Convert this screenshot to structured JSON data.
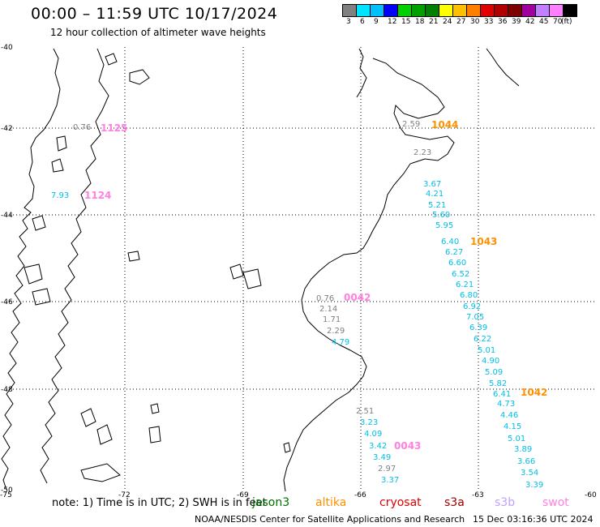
{
  "header": {
    "title": "00:00 – 11:59 UTC 10/17/2024",
    "subtitle": "12 hour collection of altimeter wave heights"
  },
  "colorbar": {
    "colors": [
      "#808080",
      "#00e5ff",
      "#00bfff",
      "#0000ff",
      "#00d000",
      "#00a000",
      "#008000",
      "#ffff00",
      "#ffc000",
      "#ff8000",
      "#e00000",
      "#b00000",
      "#800000",
      "#a000a0",
      "#c080ff",
      "#ff80ff",
      "#000000"
    ],
    "labels": [
      "3",
      "6",
      "9",
      "12",
      "15",
      "18",
      "21",
      "24",
      "27",
      "30",
      "33",
      "36",
      "39",
      "42",
      "45",
      "70",
      "(ft)"
    ]
  },
  "axes": {
    "lat_labels": [
      "-40",
      "-42",
      "-44",
      "-46",
      "-48",
      "-50"
    ],
    "lon_labels": [
      "-75",
      "-72",
      "-69",
      "-66",
      "-63",
      "-60"
    ]
  },
  "points": [
    {
      "v": "0.76",
      "c": "#808080"
    },
    {
      "v": "7.93",
      "c": "#00bfe6"
    },
    {
      "v": "2.59",
      "c": "#808080"
    },
    {
      "v": "2.23",
      "c": "#808080"
    },
    {
      "v": "3.67",
      "c": "#00bfe6"
    },
    {
      "v": "4.21",
      "c": "#00bfe6"
    },
    {
      "v": "5.21",
      "c": "#00bfe6"
    },
    {
      "v": "5.60",
      "c": "#00bfe6"
    },
    {
      "v": "5.95",
      "c": "#00bfe6"
    },
    {
      "v": "6.40",
      "c": "#00bfe6"
    },
    {
      "v": "6.27",
      "c": "#00bfe6"
    },
    {
      "v": "6.60",
      "c": "#00bfe6"
    },
    {
      "v": "6.52",
      "c": "#00bfe6"
    },
    {
      "v": "6.21",
      "c": "#00bfe6"
    },
    {
      "v": "6.80",
      "c": "#00bfe6"
    },
    {
      "v": "6.92",
      "c": "#00bfe6"
    },
    {
      "v": "7.05",
      "c": "#00bfe6"
    },
    {
      "v": "6.39",
      "c": "#00bfe6"
    },
    {
      "v": "6.22",
      "c": "#00bfe6"
    },
    {
      "v": "5.01",
      "c": "#00bfe6"
    },
    {
      "v": "4.90",
      "c": "#00bfe6"
    },
    {
      "v": "5.09",
      "c": "#00bfe6"
    },
    {
      "v": "5.82",
      "c": "#00bfe6"
    },
    {
      "v": "6.41",
      "c": "#00bfe6"
    },
    {
      "v": "4.73",
      "c": "#00bfe6"
    },
    {
      "v": "4.46",
      "c": "#00bfe6"
    },
    {
      "v": "4.15",
      "c": "#00bfe6"
    },
    {
      "v": "5.01",
      "c": "#00bfe6"
    },
    {
      "v": "3.89",
      "c": "#00bfe6"
    },
    {
      "v": "3.66",
      "c": "#00bfe6"
    },
    {
      "v": "3.54",
      "c": "#00bfe6"
    },
    {
      "v": "3.39",
      "c": "#00bfe6"
    },
    {
      "v": "0.76",
      "c": "#808080"
    },
    {
      "v": "2.14",
      "c": "#808080"
    },
    {
      "v": "1.71",
      "c": "#808080"
    },
    {
      "v": "2.29",
      "c": "#808080"
    },
    {
      "v": "4.79",
      "c": "#00bfe6"
    },
    {
      "v": "2.51",
      "c": "#808080"
    },
    {
      "v": "3.23",
      "c": "#00bfe6"
    },
    {
      "v": "4.09",
      "c": "#00bfe6"
    },
    {
      "v": "3.42",
      "c": "#00bfe6"
    },
    {
      "v": "3.49",
      "c": "#00bfe6"
    },
    {
      "v": "2.97",
      "c": "#808080"
    },
    {
      "v": "3.37",
      "c": "#00bfe6"
    }
  ],
  "passes": [
    {
      "v": "1125",
      "c": "#ff80e0"
    },
    {
      "v": "1124",
      "c": "#ff80e0"
    },
    {
      "v": "1044",
      "c": "#ff9000"
    },
    {
      "v": "1043",
      "c": "#ff9000"
    },
    {
      "v": "1042",
      "c": "#ff9000"
    },
    {
      "v": "0042",
      "c": "#ff80e0"
    },
    {
      "v": "0043",
      "c": "#ff80e0"
    }
  ],
  "footer": {
    "note": "note:  1) Time is in UTC;  2) SWH is in feet",
    "satellites": [
      {
        "name": "jason3",
        "color": "#007000"
      },
      {
        "name": "altika",
        "color": "#ff9000"
      },
      {
        "name": "cryosat",
        "color": "#e00000"
      },
      {
        "name": "s3a",
        "color": "#a00000"
      },
      {
        "name": "s3b",
        "color": "#c0a0ff"
      },
      {
        "name": "swot",
        "color": "#ff80e0"
      }
    ],
    "credit": "NOAA/NESDIS Center for Satellite Applications and Research",
    "timestamp": "15 Dec 03:16:36 UTC 2024"
  }
}
